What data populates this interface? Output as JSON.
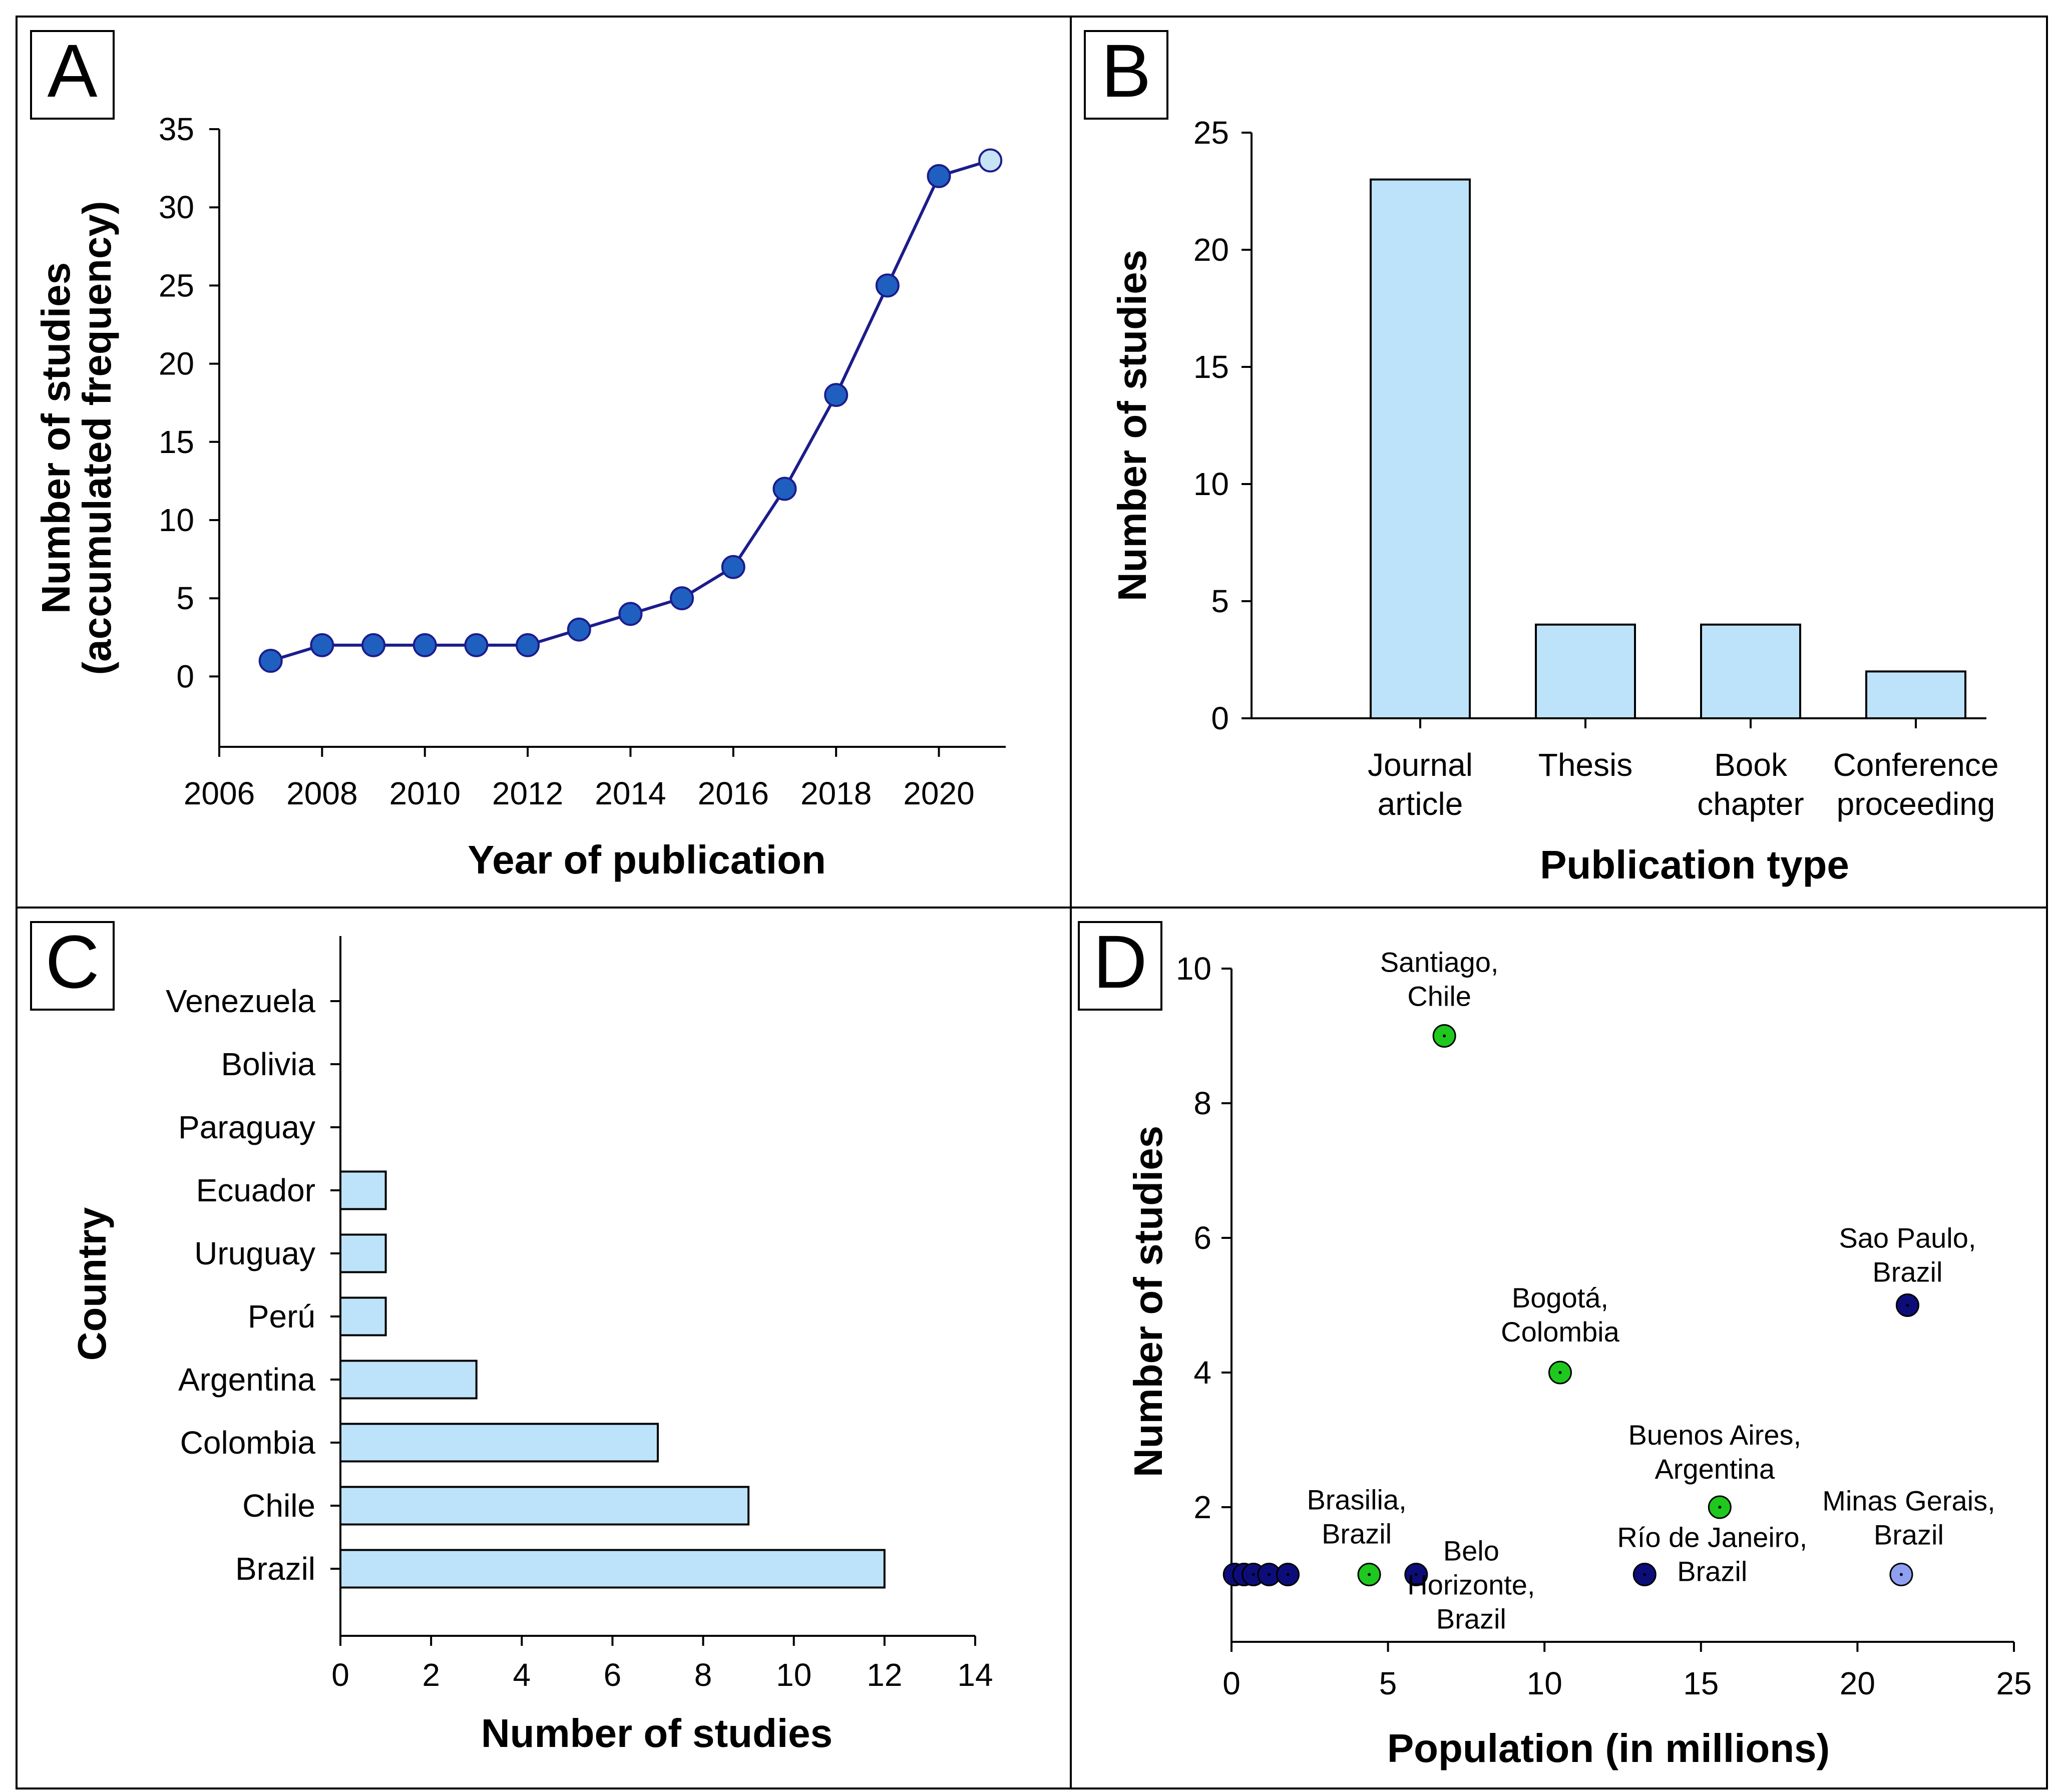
{
  "colors": {
    "line": "#1c1c8c",
    "marker": "#1f5fbf",
    "marker_light": "#c6e4f6",
    "bar_fill": "#bde3fa",
    "green": "#1ec81e",
    "navy": "#0d0d7a",
    "lavender": "#8f9ff2"
  },
  "chart_data": [
    {
      "panel": "A",
      "type": "line",
      "title": "",
      "xlabel": "Year of publication",
      "ylabel": [
        "Number of studies",
        "(accumulated frequency)"
      ],
      "xlim": [
        2006,
        2021.3
      ],
      "ylim": [
        -4.5,
        35
      ],
      "xticks": [
        2006,
        2008,
        2010,
        2012,
        2014,
        2016,
        2018,
        2020
      ],
      "yticks": [
        0,
        5,
        10,
        15,
        20,
        25,
        30,
        35
      ],
      "x": [
        2007,
        2008,
        2009,
        2010,
        2011,
        2012,
        2013,
        2014,
        2015,
        2016,
        2017,
        2018,
        2019,
        2020,
        2021
      ],
      "y": [
        1,
        2,
        2,
        2,
        2,
        2,
        3,
        4,
        5,
        7,
        12,
        18,
        25,
        32,
        33
      ],
      "highlight_last_point": true
    },
    {
      "panel": "B",
      "type": "bar",
      "title": "",
      "xlabel": "Publication type",
      "ylabel": "Number of studies",
      "ylim": [
        0,
        25
      ],
      "yticks": [
        0,
        5,
        10,
        15,
        20,
        25
      ],
      "categories": [
        [
          "Journal",
          "article"
        ],
        [
          "Thesis"
        ],
        [
          "Book",
          "chapter"
        ],
        [
          "Conference",
          "proceeding"
        ]
      ],
      "values": [
        23,
        4,
        4,
        2
      ]
    },
    {
      "panel": "C",
      "type": "bar",
      "orientation": "horizontal",
      "title": "",
      "xlabel": "Number of studies",
      "ylabel": "Country",
      "xlim": [
        0,
        14
      ],
      "xticks": [
        0,
        2,
        4,
        6,
        8,
        10,
        12,
        14
      ],
      "categories": [
        "Venezuela",
        "Bolivia",
        "Paraguay",
        "Ecuador",
        "Uruguay",
        "Perú",
        "Argentina",
        "Colombia",
        "Chile",
        "Brazil"
      ],
      "values": [
        0,
        0,
        0,
        1,
        1,
        1,
        3,
        7,
        9,
        12
      ]
    },
    {
      "panel": "D",
      "type": "scatter",
      "title": "",
      "xlabel": "Population (in millions)",
      "ylabel": "Number of studies",
      "xlim": [
        0,
        25
      ],
      "ylim": [
        0,
        10
      ],
      "xticks": [
        0,
        5,
        10,
        15,
        20,
        25
      ],
      "yticks": [
        2,
        4,
        6,
        8,
        10
      ],
      "points": [
        {
          "x": 0.1,
          "y": 1,
          "color": "navy",
          "label": []
        },
        {
          "x": 0.4,
          "y": 1,
          "color": "navy",
          "label": []
        },
        {
          "x": 0.7,
          "y": 1,
          "color": "navy",
          "label": []
        },
        {
          "x": 1.2,
          "y": 1,
          "color": "navy",
          "label": []
        },
        {
          "x": 1.8,
          "y": 1,
          "color": "navy",
          "label": []
        },
        {
          "x": 4.4,
          "y": 1,
          "color": "green",
          "label": [
            "Brasilia,",
            "Brazil"
          ]
        },
        {
          "x": 5.9,
          "y": 1,
          "color": "navy",
          "label": [
            "Belo",
            "Horizonte,",
            "Brazil"
          ]
        },
        {
          "x": 6.8,
          "y": 9,
          "color": "green",
          "label": [
            "Santiago,",
            "Chile"
          ]
        },
        {
          "x": 10.5,
          "y": 4,
          "color": "green",
          "label": [
            "Bogotá,",
            "Colombia"
          ]
        },
        {
          "x": 13.2,
          "y": 1,
          "color": "navy",
          "label": [
            "Río de Janeiro,",
            "Brazil"
          ]
        },
        {
          "x": 15.6,
          "y": 2,
          "color": "green",
          "label": [
            "Buenos Aires,",
            "Argentina"
          ]
        },
        {
          "x": 21.4,
          "y": 1,
          "color": "lavender",
          "label": [
            "Minas Gerais,",
            "Brazil"
          ]
        },
        {
          "x": 21.6,
          "y": 5,
          "color": "navy",
          "label": [
            "Sao Paulo,",
            "Brazil"
          ]
        }
      ]
    }
  ]
}
